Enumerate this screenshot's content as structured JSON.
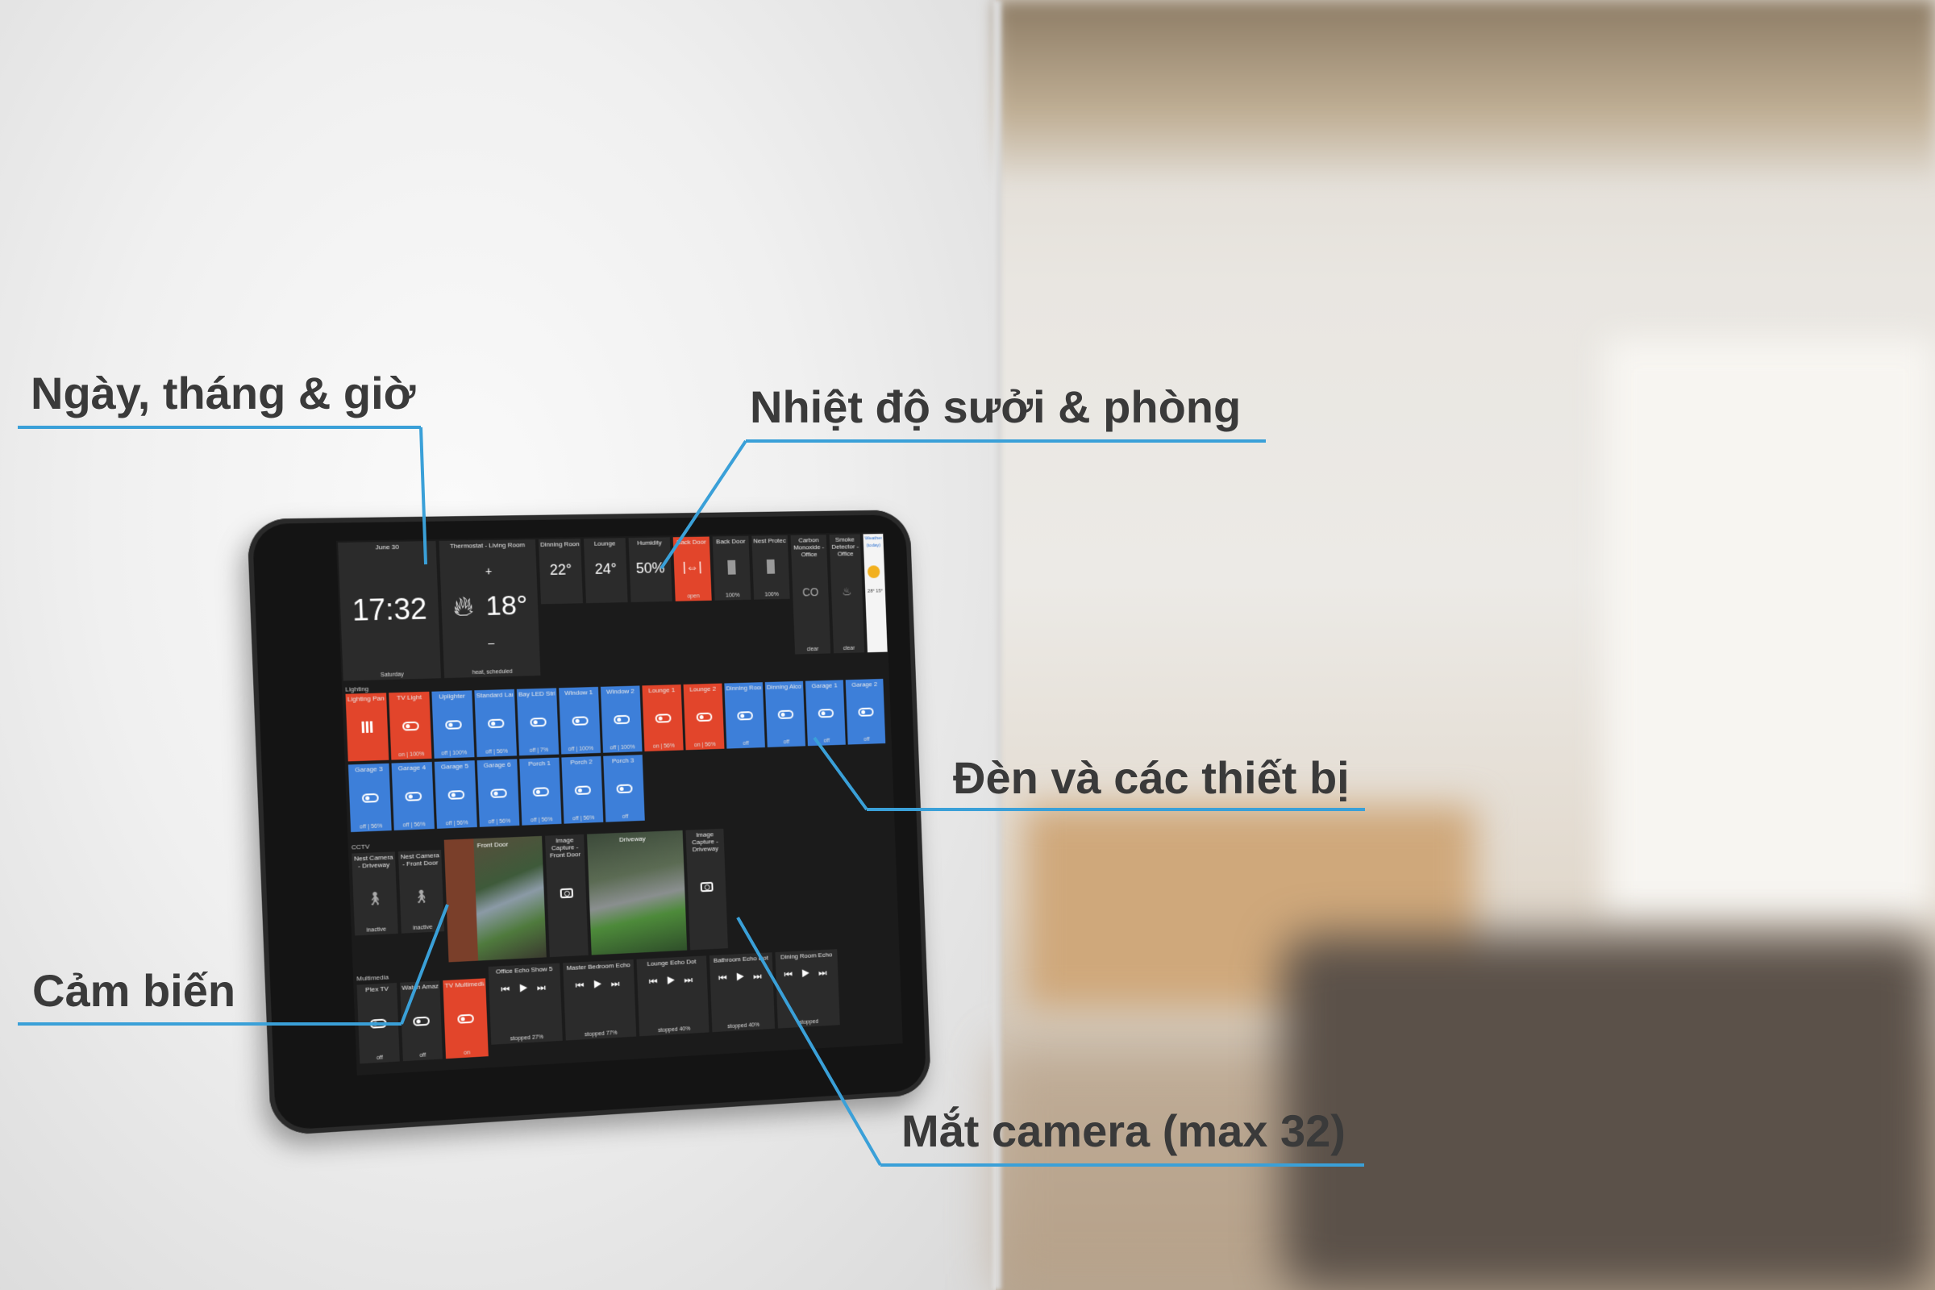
{
  "annotations": {
    "datetime": "Ngày, tháng & giờ",
    "temperature": "Nhiệt độ sưởi & phòng",
    "lights": "Đèn và các thiết bị",
    "sensors": "Cảm biến",
    "cameras": "Mắt camera (max 32)"
  },
  "dashboard": {
    "clock": {
      "date": "June 30",
      "time": "17:32",
      "day": "Saturday"
    },
    "thermostat": {
      "title": "Thermostat - Living Room",
      "temp": "18°",
      "plus": "+",
      "minus": "–",
      "mode": "heat, scheduled"
    },
    "sensors_top": [
      {
        "name": "Dinning Room",
        "value": "22°"
      },
      {
        "name": "Lounge",
        "value": "24°"
      },
      {
        "name": "Humidity",
        "value": "50%"
      },
      {
        "name": "Back Door",
        "value": "open"
      },
      {
        "name": "Back Door",
        "value": "100%"
      },
      {
        "name": "Nest Protect - Office",
        "value": "100%"
      },
      {
        "name": "Carbon Monoxide - Office",
        "value": "clear"
      },
      {
        "name": "Smoke Detector - Office",
        "value": "clear"
      }
    ],
    "weather": {
      "title": "Weather (today)",
      "temps": "28° 15°"
    },
    "lighting_section": "Lighting",
    "lights_row1": [
      {
        "name": "Lighting Panel",
        "state": ""
      },
      {
        "name": "TV Light",
        "state": "on | 100%"
      },
      {
        "name": "Uplighter",
        "state": "off | 100%"
      },
      {
        "name": "Standard Lamp",
        "state": "off | 56%"
      },
      {
        "name": "Bay LED Strip",
        "state": "off | 7%"
      },
      {
        "name": "Window 1",
        "state": "off | 100%"
      },
      {
        "name": "Window 2",
        "state": "off | 100%"
      },
      {
        "name": "Lounge 1",
        "state": "on | 56%"
      },
      {
        "name": "Lounge 2",
        "state": "on | 56%"
      },
      {
        "name": "Dinning Room",
        "state": "off"
      },
      {
        "name": "Dinning Alcove",
        "state": "off"
      },
      {
        "name": "Garage 1",
        "state": "off"
      },
      {
        "name": "Garage 2",
        "state": "off"
      }
    ],
    "lights_row2": [
      {
        "name": "Garage 3",
        "state": "off | 56%"
      },
      {
        "name": "Garage 4",
        "state": "off | 56%"
      },
      {
        "name": "Garage 5",
        "state": "off | 56%"
      },
      {
        "name": "Garage 6",
        "state": "off | 56%"
      },
      {
        "name": "Porch 1",
        "state": "off | 56%"
      },
      {
        "name": "Porch 2",
        "state": "off | 56%"
      },
      {
        "name": "Porch 3",
        "state": "off"
      }
    ],
    "cctv_section": "CCTV",
    "cctv_sensors": [
      {
        "name": "Nest Camera - Driveway",
        "state": "inactive"
      },
      {
        "name": "Nest Camera - Front Door",
        "state": "inactive"
      }
    ],
    "cameras": [
      {
        "name": "Front Door",
        "capture": "Image Capture - Front Door"
      },
      {
        "name": "Driveway",
        "capture": "Image Capture - Driveway"
      }
    ],
    "multimedia_section": "Multimedia",
    "media": [
      {
        "name": "Plex TV",
        "state": "off"
      },
      {
        "name": "Watch Amazon TV",
        "state": "off"
      },
      {
        "name": "TV Multimedia",
        "state": "on"
      },
      {
        "name": "Office Echo Show 5",
        "state": "stopped 27%"
      },
      {
        "name": "Master Bedroom Echo",
        "state": "stopped 77%"
      },
      {
        "name": "Lounge Echo Dot",
        "state": "stopped 40%"
      },
      {
        "name": "Bathroom Echo Dot",
        "state": "stopped 40%"
      },
      {
        "name": "Dining Room Echo",
        "state": "stopped"
      }
    ]
  }
}
